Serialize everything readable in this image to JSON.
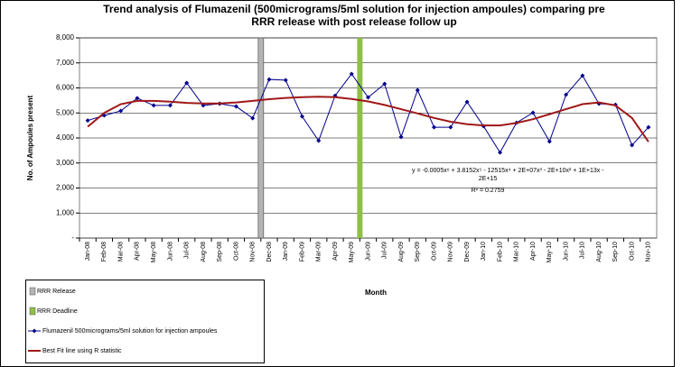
{
  "chart_data": {
    "type": "line",
    "title": [
      "Trend analysis of Flumazenil (500micrograms/5ml solution for injection ampoules) comparing pre",
      "RRR release with post release follow up"
    ],
    "y_label": "No. of Ampoules present",
    "x_label": "Month",
    "categories": [
      "Jan-08",
      "Feb-08",
      "Mar-08",
      "Apr-08",
      "May-08",
      "Jun-08",
      "Jul-08",
      "Aug-08",
      "Sep-08",
      "Oct-08",
      "Nov-08",
      "Dec-08",
      "Jan-09",
      "Feb-09",
      "Mar-09",
      "Apr-09",
      "May-09",
      "Jun-09",
      "Jul-09",
      "Aug-09",
      "Sep-09",
      "Oct-09",
      "Nov-09",
      "Dec-09",
      "Jan-10",
      "Feb-10",
      "Mar-10",
      "Apr-10",
      "May-10",
      "Jun-10",
      "Jul-10",
      "Aug-10",
      "Sep-10",
      "Oct-10",
      "Nov-10"
    ],
    "series": [
      {
        "name": "Flumazenil 500micrograms/5ml solution for injection ampoules",
        "color": "#00008b",
        "marker": "diamond",
        "values": [
          4700,
          4900,
          5080,
          5590,
          5300,
          5300,
          6200,
          5300,
          5370,
          5260,
          4790,
          6340,
          6310,
          4860,
          3890,
          5690,
          6560,
          5620,
          6160,
          4040,
          5910,
          4430,
          4430,
          5440,
          4470,
          3420,
          4610,
          5010,
          3860,
          5730,
          6490,
          5370,
          5330,
          3710,
          4430
        ]
      },
      {
        "name": "Best Fit line using R statistic",
        "color": "#a01818",
        "marker": "none",
        "values": [
          4450,
          5000,
          5350,
          5480,
          5480,
          5450,
          5400,
          5380,
          5380,
          5420,
          5480,
          5550,
          5600,
          5630,
          5650,
          5630,
          5560,
          5460,
          5320,
          5150,
          4980,
          4800,
          4650,
          4550,
          4500,
          4500,
          4600,
          4750,
          4950,
          5150,
          5350,
          5420,
          5300,
          4800,
          3850
        ]
      }
    ],
    "markers": [
      {
        "name": "RRR Release",
        "color": "#b4b4b4",
        "at": 10.5
      },
      {
        "name": "RRR Deadline",
        "color": "#8fc045",
        "at": 16.5
      }
    ],
    "annotation": [
      "y = -0.0005x⁶ + 3.8152x⁵ - 12515x⁴ + 2E+07x³ - 2E+10x² + 1E+13x -",
      "2E+15",
      "R² = 0.2759"
    ],
    "ylim": [
      0,
      8000
    ],
    "yticks": [
      {
        "value": 0,
        "label": "-"
      },
      {
        "value": 1000,
        "label": "1,000"
      },
      {
        "value": 2000,
        "label": "2,000"
      },
      {
        "value": 3000,
        "label": "3,000"
      },
      {
        "value": 4000,
        "label": "4,000"
      },
      {
        "value": 5000,
        "label": "5,000"
      },
      {
        "value": 6000,
        "label": "6,000"
      },
      {
        "value": 7000,
        "label": "7,000"
      },
      {
        "value": 8000,
        "label": "8,000"
      }
    ],
    "grid": true
  }
}
